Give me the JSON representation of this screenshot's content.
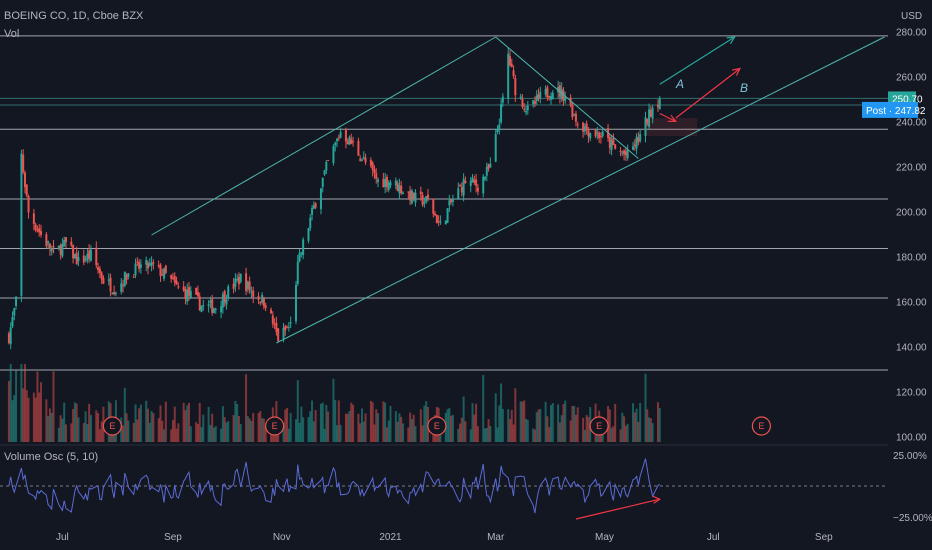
{
  "header": {
    "symbol_title": "BOEING CO, 1D, Cboe BZX",
    "volume_label": "Vol",
    "currency": "USD"
  },
  "oscillator": {
    "title": "Volume Osc (5, 10)",
    "axis_top": "25.00%",
    "axis_bottom": "−25.00%"
  },
  "price_tags": {
    "last": {
      "label": "250.70",
      "value": 250.7,
      "color": "#26a69a"
    },
    "post": {
      "label": "Post · 247.82",
      "value": 247.82,
      "color": "#2196f3"
    }
  },
  "annotations": {
    "wave_a": "A",
    "wave_b": "B"
  },
  "earnings": [
    {
      "label": "E",
      "date": "2020-07-29"
    },
    {
      "label": "E",
      "date": "2020-10-28"
    },
    {
      "label": "E",
      "date": "2021-01-27"
    },
    {
      "label": "E",
      "date": "2021-04-28"
    },
    {
      "label": "E",
      "date": "2021-07-28"
    }
  ],
  "colors": {
    "background": "#131722",
    "up": "#26a69a",
    "down": "#ef5350",
    "channel": "#4db6ac",
    "levels": "#d1d4dc",
    "oscillator": "#5b6bd6",
    "arrow_red": "#f23645",
    "arrow_teal": "#26a69a"
  },
  "chart_data": {
    "type": "candlestick",
    "symbol": "BOEING CO",
    "interval": "1D",
    "exchange": "Cboe BZX",
    "y_axis": {
      "ticks": [
        "280.00",
        "260.00",
        "240.00",
        "220.00",
        "200.00",
        "180.00",
        "160.00",
        "140.00",
        "120.00",
        "100.00"
      ],
      "range": [
        98,
        290
      ]
    },
    "x_axis": {
      "labels": [
        {
          "label": "Jul",
          "date": "2020-07-01"
        },
        {
          "label": "Sep",
          "date": "2020-09-01"
        },
        {
          "label": "Nov",
          "date": "2020-11-01"
        },
        {
          "label": "2021",
          "date": "2021-01-01"
        },
        {
          "label": "Mar",
          "date": "2021-03-01"
        },
        {
          "label": "May",
          "date": "2021-05-01"
        },
        {
          "label": "Jul",
          "date": "2021-07-01"
        },
        {
          "label": "Sep",
          "date": "2021-09-01"
        }
      ],
      "range": [
        "2020-05-27",
        "2021-10-07"
      ]
    },
    "horizontal_levels": [
      278.5,
      237,
      206,
      184,
      162,
      130
    ],
    "last_close_level": 250.7,
    "post_market_level": 247.8,
    "channel": {
      "upper": [
        {
          "date": "2020-08-20",
          "price": 190
        },
        {
          "date": "2021-03-01",
          "price": 278
        }
      ],
      "lower": [
        {
          "date": "2020-10-29",
          "price": 142
        },
        {
          "date": "2021-05-20",
          "price": 224
        },
        {
          "date": "2021-10-05",
          "price": 278
        }
      ]
    },
    "closes": [
      {
        "date": "2020-06-01",
        "close": 145
      },
      {
        "date": "2020-06-05",
        "close": 160
      },
      {
        "date": "2020-06-08",
        "close": 225
      },
      {
        "date": "2020-06-12",
        "close": 200
      },
      {
        "date": "2020-06-19",
        "close": 190
      },
      {
        "date": "2020-06-26",
        "close": 182
      },
      {
        "date": "2020-07-03",
        "close": 186
      },
      {
        "date": "2020-07-10",
        "close": 178
      },
      {
        "date": "2020-07-17",
        "close": 181
      },
      {
        "date": "2020-07-24",
        "close": 170
      },
      {
        "date": "2020-07-31",
        "close": 166
      },
      {
        "date": "2020-08-07",
        "close": 173
      },
      {
        "date": "2020-08-14",
        "close": 176
      },
      {
        "date": "2020-08-21",
        "close": 176
      },
      {
        "date": "2020-08-28",
        "close": 172
      },
      {
        "date": "2020-09-04",
        "close": 166
      },
      {
        "date": "2020-09-11",
        "close": 163
      },
      {
        "date": "2020-09-18",
        "close": 158
      },
      {
        "date": "2020-09-25",
        "close": 158
      },
      {
        "date": "2020-10-02",
        "close": 165
      },
      {
        "date": "2020-10-09",
        "close": 171
      },
      {
        "date": "2020-10-16",
        "close": 164
      },
      {
        "date": "2020-10-23",
        "close": 160
      },
      {
        "date": "2020-10-30",
        "close": 144
      },
      {
        "date": "2020-11-06",
        "close": 150
      },
      {
        "date": "2020-11-10",
        "close": 176
      },
      {
        "date": "2020-11-13",
        "close": 186
      },
      {
        "date": "2020-11-20",
        "close": 205
      },
      {
        "date": "2020-11-27",
        "close": 222
      },
      {
        "date": "2020-12-04",
        "close": 236
      },
      {
        "date": "2020-12-11",
        "close": 230
      },
      {
        "date": "2020-12-18",
        "close": 222
      },
      {
        "date": "2020-12-25",
        "close": 214
      },
      {
        "date": "2021-01-01",
        "close": 214
      },
      {
        "date": "2021-01-08",
        "close": 210
      },
      {
        "date": "2021-01-15",
        "close": 206
      },
      {
        "date": "2021-01-22",
        "close": 205
      },
      {
        "date": "2021-01-29",
        "close": 194
      },
      {
        "date": "2021-02-05",
        "close": 206
      },
      {
        "date": "2021-02-12",
        "close": 214
      },
      {
        "date": "2021-02-19",
        "close": 212
      },
      {
        "date": "2021-02-26",
        "close": 220
      },
      {
        "date": "2021-03-05",
        "close": 250
      },
      {
        "date": "2021-03-08",
        "close": 270
      },
      {
        "date": "2021-03-12",
        "close": 255
      },
      {
        "date": "2021-03-19",
        "close": 245
      },
      {
        "date": "2021-03-26",
        "close": 251
      },
      {
        "date": "2021-04-02",
        "close": 255
      },
      {
        "date": "2021-04-09",
        "close": 252
      },
      {
        "date": "2021-04-16",
        "close": 240
      },
      {
        "date": "2021-04-23",
        "close": 236
      },
      {
        "date": "2021-04-30",
        "close": 234
      },
      {
        "date": "2021-05-07",
        "close": 228
      },
      {
        "date": "2021-05-14",
        "close": 225
      },
      {
        "date": "2021-05-21",
        "close": 234
      },
      {
        "date": "2021-05-28",
        "close": 247
      },
      {
        "date": "2021-06-01",
        "close": 250.7
      }
    ],
    "projection_arrows": [
      {
        "color": "teal",
        "from": {
          "date": "2021-06-01",
          "price": 257
        },
        "to": {
          "date": "2021-07-13",
          "price": 278
        }
      },
      {
        "color": "red",
        "from": {
          "date": "2021-06-01",
          "price": 244
        },
        "to": {
          "date": "2021-06-10",
          "price": 240.5
        }
      },
      {
        "color": "red",
        "from": {
          "date": "2021-06-10",
          "price": 242
        },
        "to": {
          "date": "2021-07-16",
          "price": 264
        }
      }
    ],
    "divergence_arrow": {
      "from": {
        "date": "2021-04-15",
        "osc": -25
      },
      "to": {
        "date": "2021-06-01",
        "osc": -10
      }
    }
  }
}
